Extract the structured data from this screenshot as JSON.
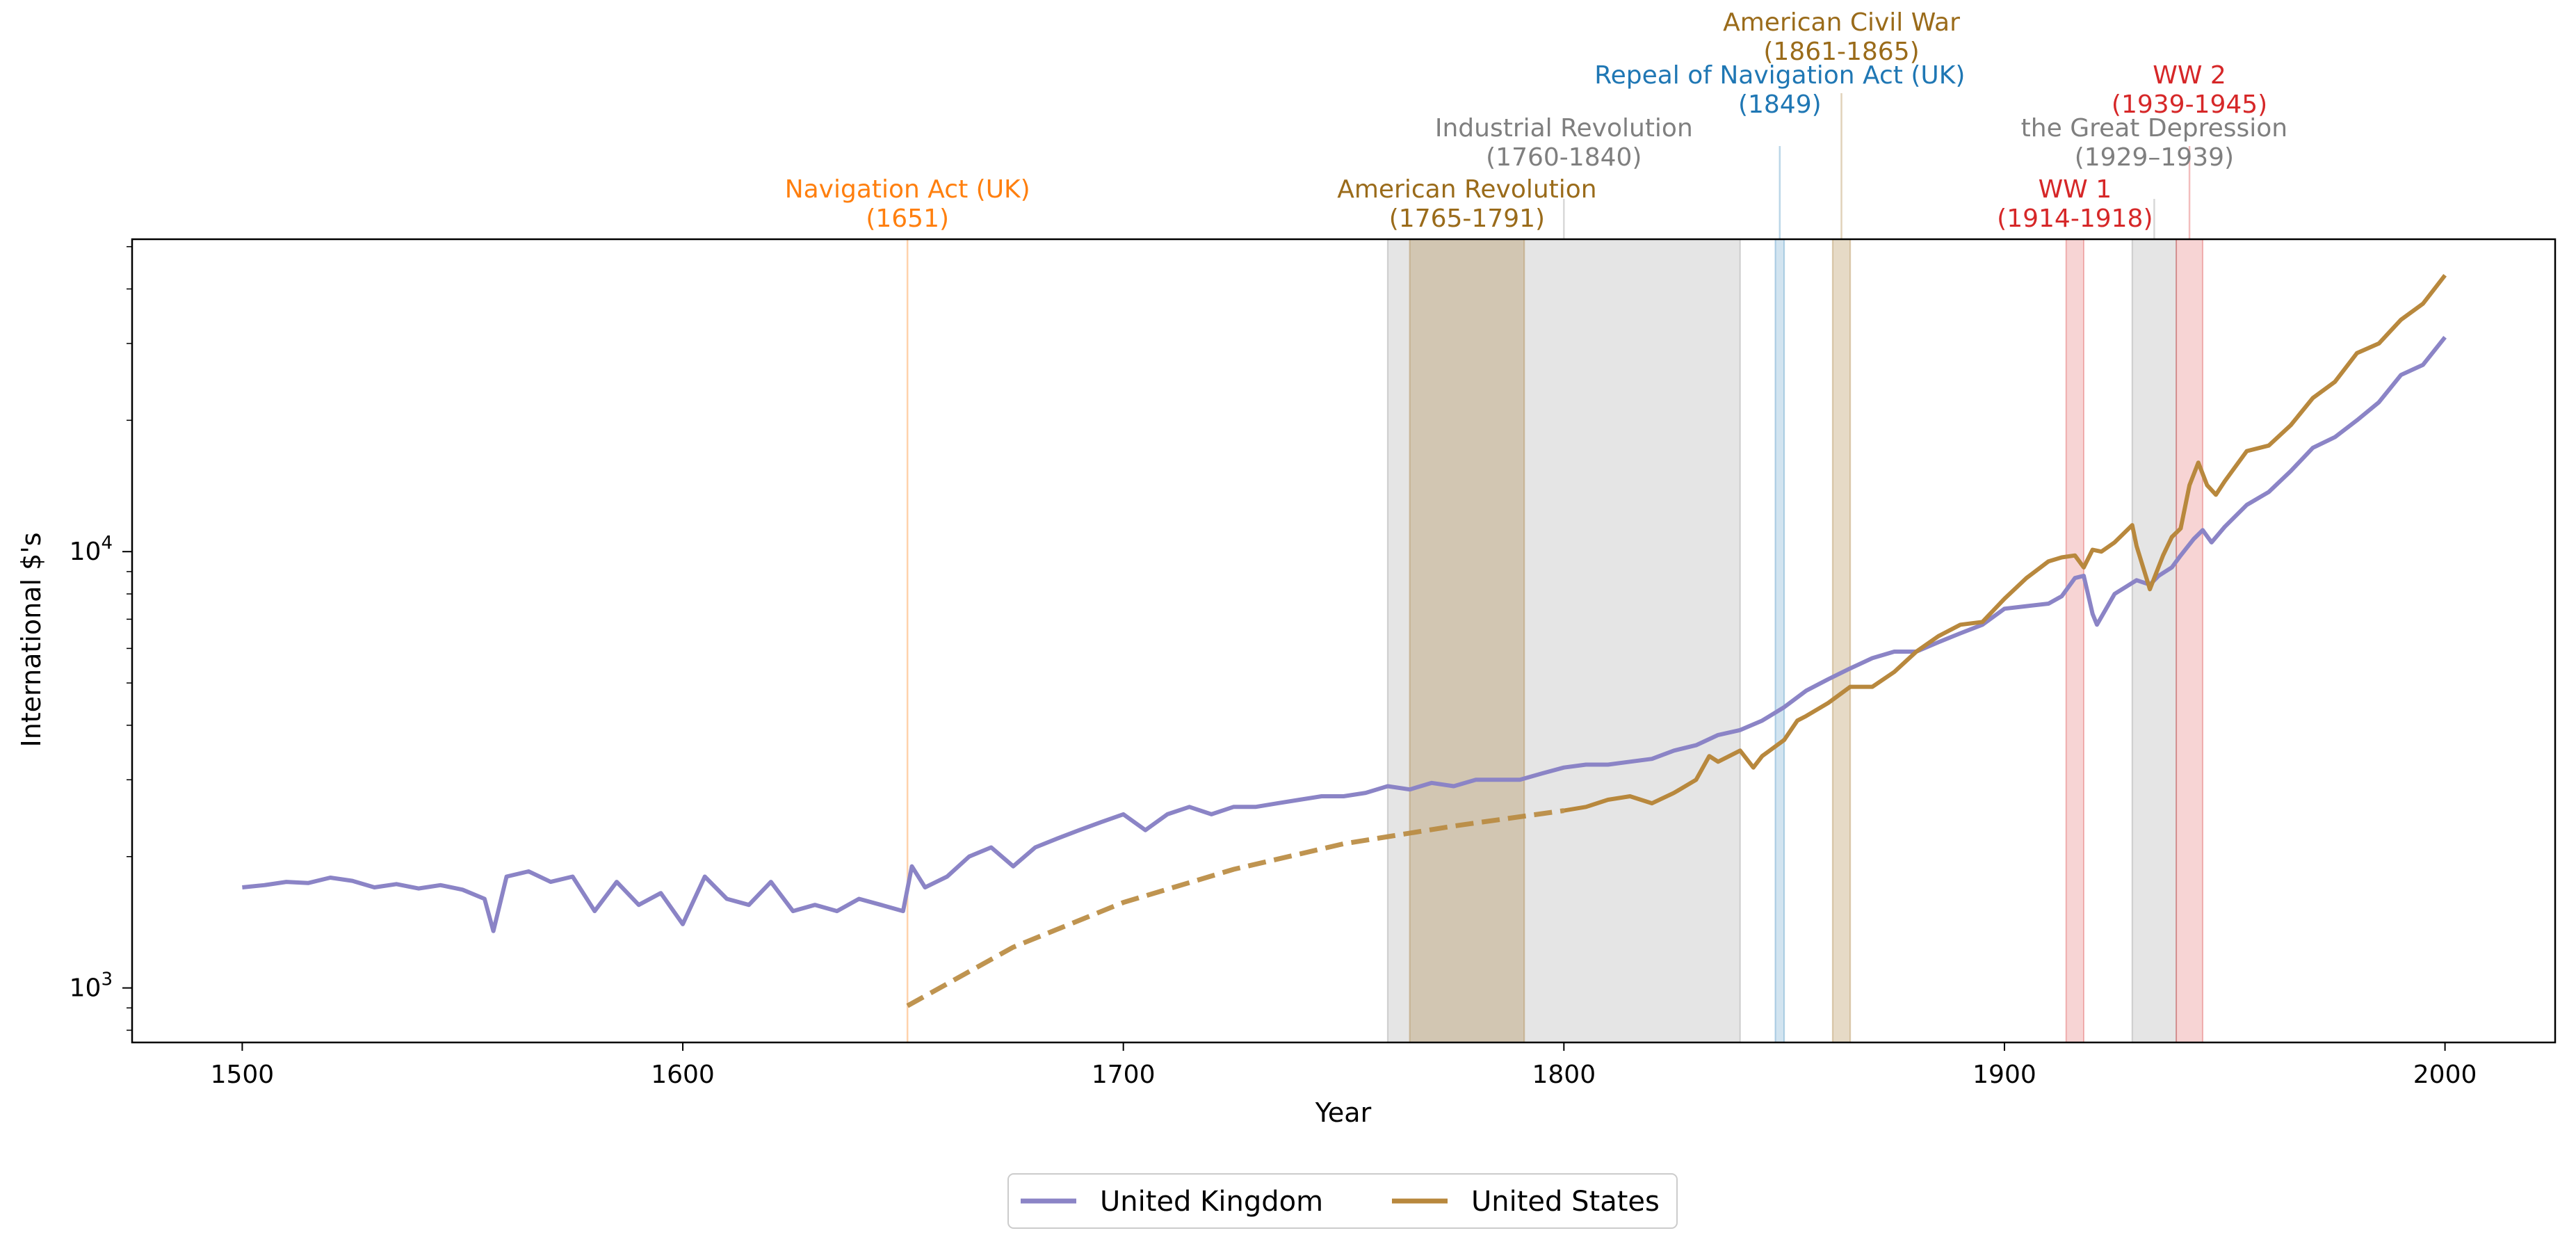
{
  "chart_data": {
    "type": "line",
    "xlabel": "Year",
    "ylabel": "International $'s",
    "xlim": [
      1475,
      2025
    ],
    "ylim": [
      750,
      52000
    ],
    "yscale": "log",
    "xticks": [
      1500,
      1600,
      1700,
      1800,
      1900,
      2000
    ],
    "yticks": [
      {
        "value": 1000,
        "base": "10",
        "exp": "3"
      },
      {
        "value": 10000,
        "base": "10",
        "exp": "4"
      }
    ],
    "legend_position": "bottom-center",
    "series": [
      {
        "name": "United Kingdom",
        "color": "#8b84c6",
        "x": [
          1500,
          1505,
          1510,
          1515,
          1520,
          1525,
          1530,
          1535,
          1540,
          1545,
          1550,
          1555,
          1557,
          1560,
          1565,
          1570,
          1575,
          1580,
          1585,
          1590,
          1595,
          1600,
          1605,
          1610,
          1615,
          1620,
          1625,
          1630,
          1635,
          1640,
          1645,
          1650,
          1652,
          1655,
          1660,
          1665,
          1670,
          1675,
          1680,
          1685,
          1690,
          1695,
          1700,
          1705,
          1710,
          1715,
          1720,
          1725,
          1730,
          1735,
          1740,
          1745,
          1750,
          1755,
          1760,
          1765,
          1770,
          1775,
          1780,
          1785,
          1790,
          1795,
          1800,
          1805,
          1810,
          1815,
          1820,
          1825,
          1830,
          1835,
          1840,
          1845,
          1850,
          1855,
          1860,
          1865,
          1870,
          1875,
          1880,
          1885,
          1890,
          1895,
          1900,
          1905,
          1910,
          1913,
          1916,
          1918,
          1920,
          1921,
          1925,
          1930,
          1933,
          1935,
          1938,
          1940,
          1943,
          1945,
          1947,
          1950,
          1955,
          1960,
          1965,
          1970,
          1975,
          1980,
          1985,
          1990,
          1995,
          2000
        ],
        "values": [
          1700,
          1720,
          1750,
          1740,
          1790,
          1760,
          1700,
          1730,
          1690,
          1720,
          1680,
          1600,
          1350,
          1800,
          1850,
          1750,
          1800,
          1500,
          1750,
          1550,
          1650,
          1400,
          1800,
          1600,
          1550,
          1750,
          1500,
          1550,
          1500,
          1600,
          1550,
          1500,
          1900,
          1700,
          1800,
          2000,
          2100,
          1900,
          2100,
          2200,
          2300,
          2400,
          2500,
          2300,
          2500,
          2600,
          2500,
          2600,
          2600,
          2650,
          2700,
          2750,
          2750,
          2800,
          2900,
          2850,
          2950,
          2900,
          3000,
          3000,
          3000,
          3100,
          3200,
          3250,
          3250,
          3300,
          3350,
          3500,
          3600,
          3800,
          3900,
          4100,
          4400,
          4800,
          5100,
          5400,
          5700,
          5900,
          5900,
          6200,
          6500,
          6800,
          7400,
          7500,
          7600,
          7900,
          8700,
          8800,
          7200,
          6800,
          8000,
          8600,
          8400,
          8800,
          9200,
          9800,
          10700,
          11200,
          10500,
          11400,
          12800,
          13700,
          15300,
          17300,
          18300,
          20000,
          22000,
          25400,
          26800,
          31000
        ],
        "dashed_x": [],
        "dashed_values": []
      },
      {
        "name": "United States",
        "color": "#b8883d",
        "x": [
          1800,
          1805,
          1810,
          1815,
          1820,
          1825,
          1830,
          1833,
          1835,
          1840,
          1843,
          1845,
          1850,
          1853,
          1855,
          1860,
          1865,
          1870,
          1875,
          1880,
          1885,
          1890,
          1895,
          1900,
          1905,
          1910,
          1913,
          1916,
          1918,
          1920,
          1922,
          1925,
          1929,
          1930,
          1933,
          1936,
          1938,
          1940,
          1942,
          1944,
          1946,
          1948,
          1950,
          1955,
          1960,
          1965,
          1970,
          1975,
          1980,
          1985,
          1990,
          1995,
          2000
        ],
        "values": [
          2550,
          2600,
          2700,
          2750,
          2650,
          2800,
          3000,
          3400,
          3300,
          3500,
          3200,
          3400,
          3700,
          4100,
          4200,
          4500,
          4900,
          4900,
          5300,
          5900,
          6400,
          6800,
          6900,
          7800,
          8700,
          9500,
          9700,
          9800,
          9200,
          10100,
          10000,
          10500,
          11500,
          10300,
          8200,
          9800,
          10800,
          11300,
          14200,
          16000,
          14200,
          13500,
          14500,
          17000,
          17500,
          19500,
          22500,
          24500,
          28500,
          30000,
          34000,
          37000,
          43000
        ],
        "dashed_x": [
          1651,
          1675,
          1700,
          1725,
          1750,
          1775,
          1800
        ],
        "dashed_values": [
          910,
          1240,
          1570,
          1870,
          2140,
          2350,
          2550
        ]
      }
    ],
    "events": [
      {
        "type": "line",
        "year": 1651,
        "label": "Navigation Act (UK)\n(1651)",
        "color": "#ff7f0e",
        "tier": 3
      },
      {
        "type": "span",
        "start": 1760,
        "end": 1840,
        "label": "Industrial Revolution\n(1760-1840)",
        "color": "#7f7f7f",
        "tier": 2
      },
      {
        "type": "span",
        "start": 1765,
        "end": 1791,
        "label": "American Revolution\n(1765-1791)",
        "color": "#9a6b1a",
        "tier": 3
      },
      {
        "type": "span",
        "start": 1848,
        "end": 1850,
        "label": "Repeal of Navigation Act (UK)\n(1849)",
        "color": "#1f77b4",
        "tier": 1
      },
      {
        "type": "span",
        "start": 1861,
        "end": 1865,
        "label": "American Civil War\n(1861-1865)",
        "color": "#9a6b1a",
        "tier": 0
      },
      {
        "type": "span",
        "start": 1914,
        "end": 1918,
        "label": "WW 1\n(1914-1918)",
        "color": "#d62728",
        "tier": 3
      },
      {
        "type": "span",
        "start": 1929,
        "end": 1939,
        "label": "the Great Depression\n(1929–1939)",
        "color": "#7f7f7f",
        "tier": 2
      },
      {
        "type": "span",
        "start": 1939,
        "end": 1945,
        "label": "WW 2\n(1939-1945)",
        "color": "#d62728",
        "tier": 1
      }
    ]
  }
}
